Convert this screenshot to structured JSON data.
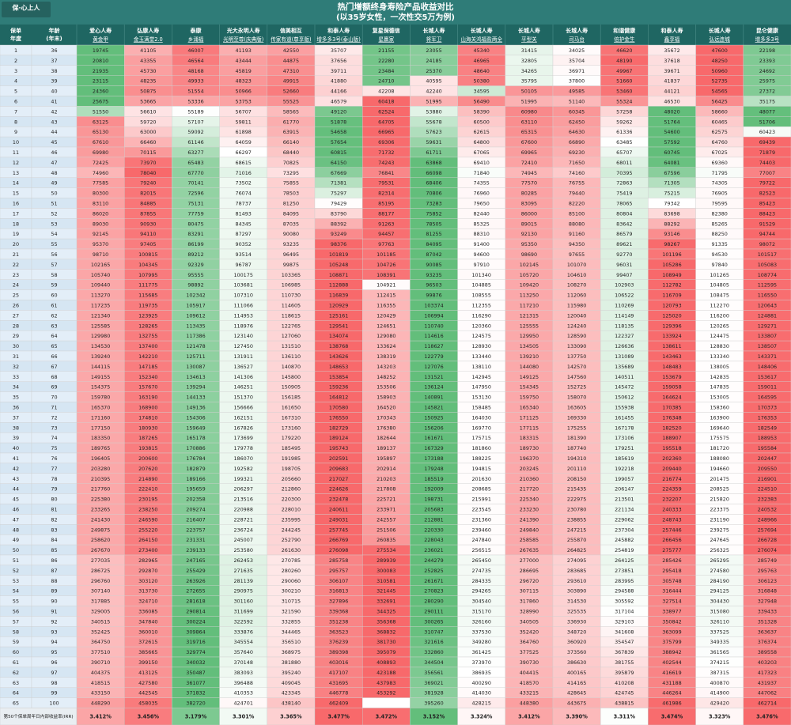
{
  "header": {
    "logo": "保·心上人",
    "title": "热门增额终身寿险产品收益对比",
    "subtitle": "(以35岁女性，一次性交5万为例)"
  },
  "table": {
    "index_headers": [
      {
        "lines": [
          "保单",
          "年度"
        ]
      },
      {
        "lines": [
          "年龄",
          "(年末)"
        ]
      }
    ],
    "columns": [
      {
        "company": "爱心人寿",
        "product": "黄金甲"
      },
      {
        "company": "弘康人寿",
        "product": "金玉满堂2.0"
      },
      {
        "company": "泰康",
        "product": "乡涌福"
      },
      {
        "company": "光大永明人寿",
        "product": "光明至尊(庆典版)"
      },
      {
        "company": "信美相互",
        "product": "传家有道(尊享版)"
      },
      {
        "company": "和泰人寿",
        "product": "增多多3号(泰山版)"
      },
      {
        "company": "复星保德信",
        "product": "星赢家"
      },
      {
        "company": "长城人寿",
        "product": "将军卫"
      },
      {
        "company": "长城人寿",
        "product": "山海关鸿福盈两全"
      },
      {
        "company": "长城人寿",
        "product": "平型关"
      },
      {
        "company": "长城人寿",
        "product": "司马台"
      },
      {
        "company": "和谐健康",
        "product": "倍护金生"
      },
      {
        "company": "和泰人寿",
        "product": "鑫享福"
      },
      {
        "company": "长城人寿",
        "product": "弘远连城"
      },
      {
        "company": "昆仑健康",
        "product": "增多多3号"
      }
    ],
    "rows": [
      [
        1,
        36,
        19745,
        41105,
        46007,
        41193,
        42550,
        35707,
        21155,
        23055,
        45340,
        31415,
        34025,
        46620,
        35672,
        47600,
        22198
      ],
      [
        2,
        37,
        20810,
        43355,
        46564,
        43444,
        44875,
        37656,
        22280,
        24185,
        46965,
        32805,
        35704,
        48190,
        37618,
        48250,
        23393
      ],
      [
        3,
        38,
        21935,
        45730,
        48168,
        45819,
        47310,
        39711,
        23484,
        25370,
        48640,
        34265,
        36971,
        49967,
        39671,
        50960,
        24692
      ],
      [
        4,
        39,
        23115,
        48235,
        49933,
        48323,
        49915,
        41880,
        24710,
        40595,
        50380,
        35795,
        37800,
        51660,
        41837,
        52735,
        25975
      ],
      [
        5,
        40,
        24360,
        50875,
        51554,
        50966,
        52660,
        44166,
        42208,
        42240,
        34595,
        50105,
        49585,
        53460,
        44121,
        54565,
        27372
      ],
      [
        6,
        41,
        25675,
        53665,
        53336,
        53753,
        55525,
        46579,
        60418,
        51995,
        56490,
        51995,
        51140,
        55324,
        46530,
        56425,
        35175
      ],
      [
        7,
        42,
        51550,
        56610,
        55189,
        56707,
        58565,
        49120,
        62524,
        53880,
        58390,
        60980,
        60345,
        57258,
        48020,
        58660,
        48077
      ],
      [
        8,
        43,
        63125,
        59720,
        57107,
        59811,
        61770,
        51878,
        64705,
        55678,
        60500,
        63110,
        62450,
        59262,
        51764,
        60465,
        51706
      ],
      [
        9,
        44,
        65130,
        63000,
        59092,
        61898,
        63915,
        54658,
        66965,
        57623,
        62615,
        65315,
        64630,
        61336,
        54600,
        62575,
        60423
      ],
      [
        10,
        45,
        67610,
        66460,
        61146,
        64059,
        66140,
        57654,
        69306,
        59631,
        64800,
        67600,
        66890,
        63485,
        57592,
        64760,
        69439
      ],
      [
        11,
        46,
        69980,
        70115,
        63277,
        66297,
        68440,
        60815,
        71732,
        61711,
        67065,
        69965,
        69230,
        65707,
        60745,
        67025,
        71879
      ],
      [
        12,
        47,
        72425,
        73970,
        65483,
        68615,
        70825,
        64150,
        74243,
        63868,
        69410,
        72410,
        71650,
        68011,
        64081,
        69360,
        74403
      ],
      [
        13,
        48,
        74960,
        78040,
        67770,
        71016,
        73295,
        67669,
        76841,
        66098,
        71840,
        74945,
        74160,
        70395,
        67596,
        71795,
        77007
      ],
      [
        14,
        49,
        77585,
        79240,
        70141,
        73502,
        75855,
        71381,
        79531,
        68406,
        74355,
        77570,
        76755,
        72863,
        71305,
        74305,
        79722
      ],
      [
        15,
        50,
        80300,
        82015,
        72596,
        76074,
        78503,
        75297,
        82314,
        70806,
        76960,
        80285,
        79440,
        75419,
        75215,
        76905,
        82523
      ],
      [
        16,
        51,
        83110,
        84885,
        75131,
        78737,
        81250,
        79429,
        85195,
        73283,
        79650,
        83095,
        82220,
        78065,
        79342,
        79595,
        85423
      ],
      [
        17,
        52,
        86020,
        87855,
        77759,
        81493,
        84095,
        83790,
        88177,
        75852,
        82440,
        86000,
        85100,
        80804,
        83698,
        82380,
        88423
      ],
      [
        18,
        53,
        89030,
        90930,
        80475,
        84345,
        87035,
        88392,
        91263,
        78505,
        85325,
        89015,
        88080,
        83642,
        88292,
        85265,
        91529
      ],
      [
        19,
        54,
        92145,
        94110,
        83291,
        87297,
        90080,
        93249,
        94457,
        81255,
        88310,
        92130,
        91160,
        86579,
        93146,
        88250,
        94744
      ],
      [
        20,
        55,
        95370,
        97405,
        86199,
        90352,
        93235,
        98376,
        97763,
        84095,
        91400,
        95350,
        94350,
        89621,
        98267,
        91335,
        98072
      ],
      [
        21,
        56,
        98710,
        100815,
        89212,
        93514,
        96495,
        101819,
        101185,
        87042,
        94600,
        98690,
        97655,
        92770,
        101196,
        94530,
        101517
      ],
      [
        22,
        57,
        102165,
        104345,
        92329,
        96787,
        99875,
        105248,
        104726,
        90085,
        97910,
        102145,
        101070,
        96031,
        105286,
        97840,
        105083
      ],
      [
        23,
        58,
        105740,
        107995,
        95555,
        100175,
        103365,
        108871,
        108391,
        93235,
        101340,
        105720,
        104610,
        99407,
        108949,
        101265,
        108774
      ],
      [
        24,
        59,
        109440,
        111775,
        98892,
        103681,
        106985,
        112888,
        104921,
        96503,
        104885,
        109420,
        108270,
        102903,
        112782,
        104805,
        112595
      ],
      [
        25,
        60,
        113270,
        115685,
        102342,
        107310,
        110730,
        116839,
        112415,
        99876,
        108555,
        113250,
        112060,
        106522,
        116709,
        108475,
        116550
      ],
      [
        26,
        61,
        117235,
        119735,
        105917,
        111066,
        114605,
        120929,
        116355,
        103374,
        112355,
        117210,
        115980,
        110269,
        120793,
        112270,
        120643
      ],
      [
        27,
        62,
        121340,
        123925,
        109612,
        114953,
        118615,
        125161,
        120429,
        106994,
        116290,
        121315,
        120040,
        114149,
        125020,
        116200,
        124881
      ],
      [
        28,
        63,
        125585,
        128265,
        113435,
        118976,
        122765,
        129541,
        124651,
        110740,
        120360,
        125555,
        124240,
        118135,
        129396,
        120265,
        129271
      ],
      [
        29,
        64,
        129980,
        132755,
        117386,
        123140,
        127060,
        134074,
        129080,
        114616,
        124575,
        129950,
        128590,
        122327,
        133924,
        124475,
        133807
      ],
      [
        30,
        65,
        134530,
        137400,
        121478,
        127450,
        131510,
        138768,
        133624,
        118627,
        128930,
        134505,
        133090,
        126636,
        138611,
        128830,
        138507
      ],
      [
        31,
        66,
        139240,
        142210,
        125711,
        131911,
        136110,
        143626,
        138319,
        122779,
        133440,
        139210,
        137750,
        131089,
        143463,
        133340,
        143371
      ],
      [
        32,
        67,
        144115,
        147185,
        130087,
        136527,
        140870,
        148653,
        143203,
        127076,
        138110,
        144080,
        142570,
        135689,
        148483,
        138005,
        148406
      ],
      [
        33,
        68,
        149155,
        152340,
        134613,
        141306,
        145800,
        153854,
        148252,
        131521,
        142945,
        149125,
        147560,
        140511,
        153679,
        142835,
        153617
      ],
      [
        34,
        69,
        154375,
        157670,
        139294,
        146251,
        150905,
        159236,
        153506,
        136124,
        147950,
        154345,
        152725,
        145472,
        159058,
        147835,
        159011
      ],
      [
        35,
        70,
        159780,
        163190,
        144133,
        151370,
        156185,
        164812,
        158903,
        140891,
        153130,
        159750,
        158070,
        150612,
        164624,
        153005,
        164595
      ],
      [
        36,
        71,
        165370,
        168900,
        149136,
        156666,
        161650,
        170580,
        164520,
        145821,
        158485,
        165340,
        163605,
        155938,
        170385,
        158360,
        170373
      ],
      [
        37,
        72,
        171160,
        174810,
        154306,
        162151,
        167310,
        176550,
        170343,
        150925,
        164030,
        171125,
        169330,
        161455,
        176348,
        163900,
        176353
      ],
      [
        38,
        73,
        177150,
        180930,
        159649,
        167826,
        173160,
        182729,
        176380,
        156206,
        169770,
        177115,
        175255,
        167178,
        182520,
        169640,
        182549
      ],
      [
        39,
        74,
        183350,
        187265,
        165178,
        173699,
        179220,
        189124,
        182644,
        161671,
        175715,
        183315,
        181390,
        173106,
        188907,
        175575,
        188953
      ],
      [
        40,
        75,
        189765,
        193815,
        170886,
        179778,
        185495,
        195743,
        189137,
        167329,
        181860,
        189730,
        187740,
        179251,
        195518,
        181720,
        195584
      ],
      [
        41,
        76,
        196405,
        200600,
        176784,
        186070,
        191985,
        202591,
        195897,
        173188,
        188225,
        196370,
        194310,
        185619,
        202360,
        188080,
        202447
      ],
      [
        42,
        77,
        203280,
        207620,
        182879,
        192582,
        198705,
        209683,
        202914,
        179248,
        194815,
        203245,
        201110,
        192218,
        209440,
        194660,
        209550
      ],
      [
        43,
        78,
        210395,
        214890,
        189166,
        199321,
        205660,
        217027,
        210203,
        185519,
        201630,
        210360,
        208150,
        199057,
        216774,
        201475,
        216901
      ],
      [
        44,
        79,
        217760,
        222410,
        195659,
        206297,
        212860,
        224626,
        217808,
        192009,
        208685,
        217720,
        215435,
        206147,
        224359,
        208525,
        224510
      ],
      [
        45,
        80,
        225380,
        230195,
        202358,
        213516,
        220300,
        232478,
        225721,
        198731,
        215991,
        225340,
        222975,
        213501,
        232207,
        215820,
        232383
      ],
      [
        46,
        81,
        233265,
        238250,
        209274,
        220988,
        228010,
        240611,
        233971,
        205683,
        223545,
        233230,
        230780,
        221134,
        240333,
        223375,
        240532
      ],
      [
        47,
        82,
        241430,
        246590,
        216407,
        228721,
        235995,
        249031,
        242557,
        212881,
        231360,
        241390,
        238855,
        229062,
        248743,
        231190,
        248966
      ],
      [
        48,
        83,
        249875,
        255220,
        223757,
        236724,
        244245,
        257745,
        251506,
        220330,
        239460,
        249840,
        247215,
        237304,
        257446,
        239275,
        257694
      ],
      [
        49,
        84,
        258620,
        264150,
        231331,
        245007,
        252790,
        266769,
        260835,
        228043,
        247840,
        258585,
        255870,
        245882,
        266456,
        247645,
        266728
      ],
      [
        50,
        85,
        267670,
        273400,
        239133,
        253580,
        261630,
        276098,
        275534,
        236021,
        256515,
        267635,
        264825,
        254819,
        275777,
        256325,
        276074
      ],
      [
        51,
        86,
        277035,
        282965,
        247165,
        262453,
        270785,
        285758,
        289939,
        244279,
        265450,
        277000,
        274095,
        264125,
        285426,
        265295,
        285749
      ],
      [
        52,
        87,
        286725,
        292870,
        255429,
        271635,
        280260,
        295757,
        300083,
        252825,
        274735,
        286695,
        283685,
        273851,
        295418,
        274580,
        295763
      ],
      [
        53,
        88,
        296760,
        303120,
        263926,
        281139,
        290060,
        306107,
        310581,
        261671,
        284335,
        296720,
        293610,
        283995,
        305748,
        284190,
        306123
      ],
      [
        54,
        89,
        307140,
        313730,
        272655,
        290975,
        300210,
        316813,
        321445,
        270823,
        294265,
        307115,
        303890,
        294588,
        316444,
        294125,
        316848
      ],
      [
        55,
        90,
        317885,
        324710,
        281618,
        301160,
        310715,
        327896,
        332691,
        280290,
        304540,
        317860,
        314530,
        305592,
        327514,
        304430,
        327948
      ],
      [
        56,
        91,
        329005,
        336085,
        290814,
        311699,
        321590,
        339368,
        344325,
        290111,
        315170,
        328990,
        325535,
        317104,
        338977,
        315080,
        339433
      ],
      [
        57,
        92,
        340515,
        347840,
        300224,
        322592,
        332855,
        351238,
        356368,
        300265,
        326160,
        340505,
        336930,
        329103,
        350842,
        326110,
        351328
      ],
      [
        58,
        93,
        352425,
        360010,
        309864,
        333876,
        344465,
        363523,
        368832,
        310747,
        337530,
        352420,
        348720,
        341608,
        363099,
        337525,
        363637
      ],
      [
        59,
        94,
        364750,
        372615,
        319716,
        345554,
        356510,
        376239,
        381730,
        321616,
        349280,
        364760,
        360920,
        354547,
        375799,
        349335,
        376374
      ],
      [
        60,
        95,
        377510,
        385665,
        329774,
        357640,
        368975,
        389398,
        395079,
        332860,
        361425,
        377525,
        373560,
        367839,
        388942,
        361565,
        389558
      ],
      [
        61,
        96,
        390710,
        399150,
        340032,
        370148,
        381880,
        403016,
        408893,
        344504,
        373970,
        390730,
        386630,
        381755,
        402544,
        374215,
        403203
      ],
      [
        62,
        97,
        404375,
        413125,
        350487,
        383093,
        395240,
        417107,
        423188,
        356561,
        386935,
        404415,
        400165,
        395879,
        416619,
        387315,
        417323
      ],
      [
        63,
        98,
        418515,
        427580,
        361077,
        396488,
        409045,
        431695,
        437983,
        369021,
        400290,
        418570,
        414165,
        410208,
        431188,
        400870,
        431937
      ],
      [
        64,
        99,
        433150,
        442545,
        371832,
        410353,
        423345,
        446778,
        453292,
        381928,
        414030,
        433215,
        428645,
        424745,
        446264,
        414900,
        447062
      ],
      [
        65,
        100,
        448290,
        458035,
        382720,
        424701,
        438140,
        462409,
        null,
        395260,
        428215,
        448380,
        443675,
        438815,
        461986,
        429420,
        462714
      ]
    ],
    "irr": {
      "label": "第50个保单周年日内部收益率(IRR)",
      "values": [
        "3.412%",
        "3.456%",
        "3.179%",
        "3.301%",
        "3.365%",
        "3.477%",
        "3.472%",
        "3.152%",
        "3.324%",
        "3.412%",
        "3.390%",
        "3.311%",
        "3.474%",
        "3.323%",
        "3.476%"
      ]
    }
  }
}
